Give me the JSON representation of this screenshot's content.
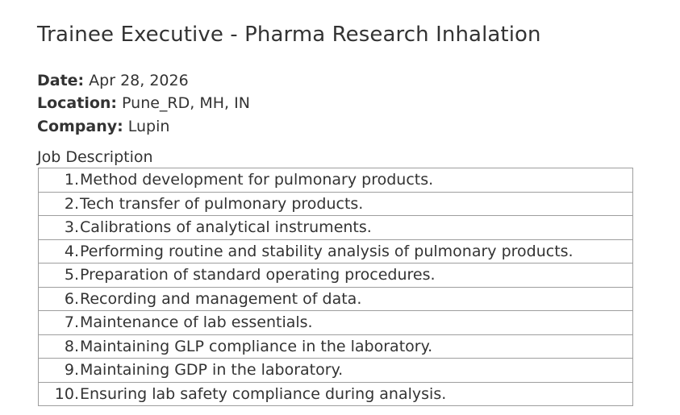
{
  "job": {
    "title": "Trainee Executive - Pharma Research Inhalation",
    "date_label": "Date:",
    "date": "Apr 28, 2026",
    "location_label": "Location:",
    "location": "Pune_RD, MH, IN",
    "company_label": "Company:",
    "company": "Lupin"
  },
  "description": {
    "heading": "Job Description",
    "items": [
      {
        "num": "1.",
        "text": "Method development for pulmonary products."
      },
      {
        "num": "2.",
        "text": "Tech transfer of pulmonary products."
      },
      {
        "num": "3.",
        "text": "Calibrations of analytical instruments."
      },
      {
        "num": "4.",
        "text": "Performing routine and stability analysis of pulmonary products."
      },
      {
        "num": "5.",
        "text": "Preparation of standard operating procedures."
      },
      {
        "num": "6.",
        "text": "Recording and management of data."
      },
      {
        "num": "7.",
        "text": "Maintenance of lab essentials."
      },
      {
        "num": "8.",
        "text": "Maintaining GLP compliance in the laboratory."
      },
      {
        "num": "9.",
        "text": "Maintaining GDP in the laboratory."
      },
      {
        "num": "10.",
        "text": "Ensuring lab safety compliance during analysis."
      }
    ]
  }
}
